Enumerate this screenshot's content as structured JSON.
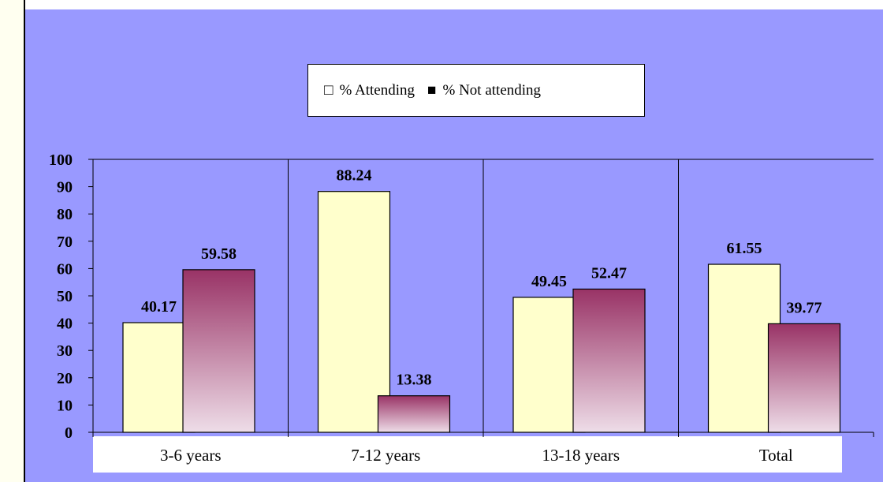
{
  "chart_data": {
    "type": "bar",
    "categories": [
      "3-6 years",
      "7-12 years",
      "13-18 years",
      "Total"
    ],
    "series": [
      {
        "name": "% Attending",
        "values": [
          40.17,
          88.24,
          49.45,
          61.55
        ]
      },
      {
        "name": "% Not attending",
        "values": [
          59.58,
          13.38,
          52.47,
          39.77
        ]
      }
    ],
    "data_labels": [
      [
        "40.17",
        "88.24",
        "49.45",
        "61.55"
      ],
      [
        "59.58",
        "13.38",
        "52.47",
        "39.77"
      ]
    ],
    "ylim": [
      0,
      100
    ],
    "yticks": [
      "0",
      "10",
      "20",
      "30",
      "40",
      "50",
      "60",
      "70",
      "80",
      "90",
      "100"
    ],
    "legend": {
      "position": "top-center",
      "attending_marker": "□",
      "not_attending_marker": "■"
    },
    "grid": false,
    "colors": {
      "attending": "#ffffcc",
      "not_attending_top": "#993366",
      "not_attending_bottom": "#eedde8",
      "background": "#9999ff"
    }
  }
}
